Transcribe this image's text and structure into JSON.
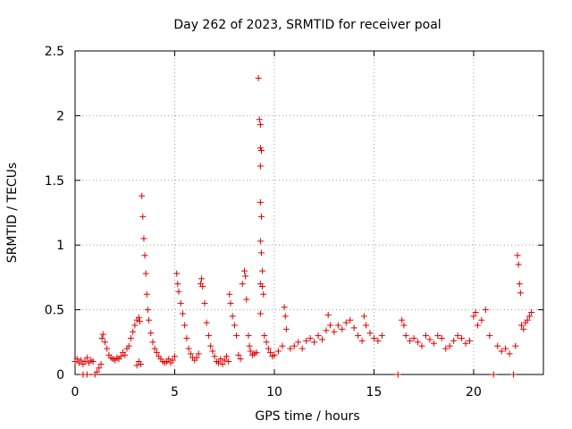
{
  "chart_data": {
    "type": "scatter",
    "title": "Day 262 of 2023, SRMTID for receiver poal",
    "xlabel": "GPS time / hours",
    "ylabel": "SRMTID / TECUs",
    "xlim": [
      0,
      23.5
    ],
    "ylim": [
      0,
      2.5
    ],
    "xticks": [
      0,
      5,
      10,
      15,
      20
    ],
    "xtick_labels": [
      "0",
      "5",
      "10",
      "15",
      "20"
    ],
    "yticks": [
      0,
      0.5,
      1,
      1.5,
      2,
      2.5
    ],
    "ytick_labels": [
      "0",
      "0.5",
      "1",
      "1.5",
      "2",
      "2.5"
    ],
    "grid": true,
    "marker": "+",
    "color": "#e00000",
    "series": [
      {
        "name": "poal",
        "points": [
          [
            0.0,
            0.1
          ],
          [
            0.1,
            0.12
          ],
          [
            0.2,
            0.09
          ],
          [
            0.3,
            0.11
          ],
          [
            0.4,
            0.08
          ],
          [
            0.5,
            0.1
          ],
          [
            0.6,
            0.13
          ],
          [
            0.7,
            0.09
          ],
          [
            0.8,
            0.11
          ],
          [
            0.9,
            0.1
          ],
          [
            0.4,
            0.0
          ],
          [
            0.6,
            0.0
          ],
          [
            1.0,
            0.0
          ],
          [
            1.1,
            0.02
          ],
          [
            1.2,
            0.05
          ],
          [
            1.3,
            0.08
          ],
          [
            1.35,
            0.28
          ],
          [
            1.4,
            0.31
          ],
          [
            1.5,
            0.25
          ],
          [
            1.6,
            0.2
          ],
          [
            1.7,
            0.15
          ],
          [
            1.8,
            0.13
          ],
          [
            1.9,
            0.12
          ],
          [
            2.0,
            0.11
          ],
          [
            2.1,
            0.13
          ],
          [
            2.2,
            0.12
          ],
          [
            2.3,
            0.14
          ],
          [
            2.4,
            0.17
          ],
          [
            2.5,
            0.15
          ],
          [
            2.6,
            0.2
          ],
          [
            2.7,
            0.22
          ],
          [
            2.8,
            0.28
          ],
          [
            2.9,
            0.33
          ],
          [
            3.0,
            0.38
          ],
          [
            3.1,
            0.42
          ],
          [
            3.2,
            0.44
          ],
          [
            3.25,
            0.41
          ],
          [
            3.1,
            0.07
          ],
          [
            3.2,
            0.1
          ],
          [
            3.3,
            0.08
          ],
          [
            3.35,
            1.38
          ],
          [
            3.4,
            1.22
          ],
          [
            3.45,
            1.05
          ],
          [
            3.5,
            0.92
          ],
          [
            3.55,
            0.78
          ],
          [
            3.6,
            0.62
          ],
          [
            3.65,
            0.5
          ],
          [
            3.7,
            0.42
          ],
          [
            3.8,
            0.32
          ],
          [
            3.9,
            0.25
          ],
          [
            4.0,
            0.2
          ],
          [
            4.1,
            0.17
          ],
          [
            4.2,
            0.14
          ],
          [
            4.3,
            0.12
          ],
          [
            4.4,
            0.1
          ],
          [
            4.5,
            0.09
          ],
          [
            4.6,
            0.1
          ],
          [
            4.7,
            0.12
          ],
          [
            4.8,
            0.09
          ],
          [
            4.9,
            0.11
          ],
          [
            5.0,
            0.14
          ],
          [
            5.1,
            0.78
          ],
          [
            5.15,
            0.7
          ],
          [
            5.2,
            0.64
          ],
          [
            5.3,
            0.55
          ],
          [
            5.4,
            0.47
          ],
          [
            5.5,
            0.38
          ],
          [
            5.6,
            0.28
          ],
          [
            5.7,
            0.2
          ],
          [
            5.8,
            0.16
          ],
          [
            5.9,
            0.13
          ],
          [
            6.0,
            0.11
          ],
          [
            6.1,
            0.13
          ],
          [
            6.2,
            0.16
          ],
          [
            6.3,
            0.7
          ],
          [
            6.35,
            0.74
          ],
          [
            6.4,
            0.68
          ],
          [
            6.5,
            0.55
          ],
          [
            6.6,
            0.4
          ],
          [
            6.7,
            0.3
          ],
          [
            6.8,
            0.22
          ],
          [
            6.9,
            0.18
          ],
          [
            7.0,
            0.14
          ],
          [
            7.1,
            0.1
          ],
          [
            7.2,
            0.09
          ],
          [
            7.3,
            0.12
          ],
          [
            7.4,
            0.08
          ],
          [
            7.5,
            0.11
          ],
          [
            7.6,
            0.14
          ],
          [
            7.7,
            0.1
          ],
          [
            7.75,
            0.62
          ],
          [
            7.8,
            0.55
          ],
          [
            7.9,
            0.45
          ],
          [
            8.0,
            0.38
          ],
          [
            8.1,
            0.3
          ],
          [
            8.2,
            0.15
          ],
          [
            8.3,
            0.12
          ],
          [
            8.4,
            0.7
          ],
          [
            8.5,
            0.8
          ],
          [
            8.55,
            0.76
          ],
          [
            8.6,
            0.58
          ],
          [
            8.7,
            0.3
          ],
          [
            8.75,
            0.22
          ],
          [
            8.8,
            0.18
          ],
          [
            8.9,
            0.15
          ],
          [
            9.0,
            0.16
          ],
          [
            9.1,
            0.17
          ],
          [
            9.2,
            2.29
          ],
          [
            9.25,
            1.97
          ],
          [
            9.3,
            1.93
          ],
          [
            9.3,
            1.75
          ],
          [
            9.35,
            1.73
          ],
          [
            9.3,
            1.61
          ],
          [
            9.3,
            1.33
          ],
          [
            9.35,
            1.22
          ],
          [
            9.3,
            1.03
          ],
          [
            9.35,
            0.94
          ],
          [
            9.3,
            0.7
          ],
          [
            9.4,
            0.68
          ],
          [
            9.45,
            0.62
          ],
          [
            9.4,
            0.8
          ],
          [
            9.3,
            0.47
          ],
          [
            9.5,
            0.3
          ],
          [
            9.6,
            0.25
          ],
          [
            9.7,
            0.2
          ],
          [
            9.8,
            0.17
          ],
          [
            9.9,
            0.14
          ],
          [
            10.0,
            0.15
          ],
          [
            10.2,
            0.18
          ],
          [
            10.4,
            0.22
          ],
          [
            10.5,
            0.52
          ],
          [
            10.55,
            0.45
          ],
          [
            10.6,
            0.35
          ],
          [
            10.8,
            0.2
          ],
          [
            11.0,
            0.22
          ],
          [
            11.2,
            0.25
          ],
          [
            11.4,
            0.2
          ],
          [
            11.6,
            0.26
          ],
          [
            11.8,
            0.28
          ],
          [
            12.0,
            0.25
          ],
          [
            12.2,
            0.3
          ],
          [
            12.4,
            0.27
          ],
          [
            12.6,
            0.34
          ],
          [
            12.7,
            0.46
          ],
          [
            12.8,
            0.38
          ],
          [
            13.0,
            0.33
          ],
          [
            13.2,
            0.38
          ],
          [
            13.4,
            0.35
          ],
          [
            13.6,
            0.4
          ],
          [
            13.8,
            0.42
          ],
          [
            14.0,
            0.36
          ],
          [
            14.2,
            0.3
          ],
          [
            14.4,
            0.26
          ],
          [
            14.5,
            0.45
          ],
          [
            14.6,
            0.38
          ],
          [
            14.8,
            0.32
          ],
          [
            15.0,
            0.28
          ],
          [
            15.2,
            0.26
          ],
          [
            15.4,
            0.3
          ],
          [
            16.2,
            0.0
          ],
          [
            16.4,
            0.42
          ],
          [
            16.5,
            0.38
          ],
          [
            16.6,
            0.3
          ],
          [
            16.8,
            0.26
          ],
          [
            17.0,
            0.28
          ],
          [
            17.2,
            0.25
          ],
          [
            17.4,
            0.22
          ],
          [
            17.6,
            0.3
          ],
          [
            17.8,
            0.27
          ],
          [
            18.0,
            0.24
          ],
          [
            18.2,
            0.3
          ],
          [
            18.4,
            0.28
          ],
          [
            18.6,
            0.2
          ],
          [
            18.8,
            0.22
          ],
          [
            19.0,
            0.26
          ],
          [
            19.2,
            0.3
          ],
          [
            19.4,
            0.28
          ],
          [
            19.6,
            0.24
          ],
          [
            19.8,
            0.26
          ],
          [
            20.0,
            0.45
          ],
          [
            20.1,
            0.48
          ],
          [
            20.2,
            0.38
          ],
          [
            20.4,
            0.42
          ],
          [
            20.6,
            0.5
          ],
          [
            20.8,
            0.3
          ],
          [
            21.0,
            0.0
          ],
          [
            21.2,
            0.22
          ],
          [
            21.4,
            0.18
          ],
          [
            21.6,
            0.2
          ],
          [
            21.8,
            0.16
          ],
          [
            22.0,
            0.0
          ],
          [
            22.1,
            0.22
          ],
          [
            22.2,
            0.92
          ],
          [
            22.25,
            0.85
          ],
          [
            22.3,
            0.7
          ],
          [
            22.35,
            0.63
          ],
          [
            22.4,
            0.38
          ],
          [
            22.5,
            0.35
          ],
          [
            22.6,
            0.4
          ],
          [
            22.7,
            0.42
          ],
          [
            22.8,
            0.45
          ],
          [
            22.9,
            0.48
          ]
        ]
      }
    ]
  }
}
